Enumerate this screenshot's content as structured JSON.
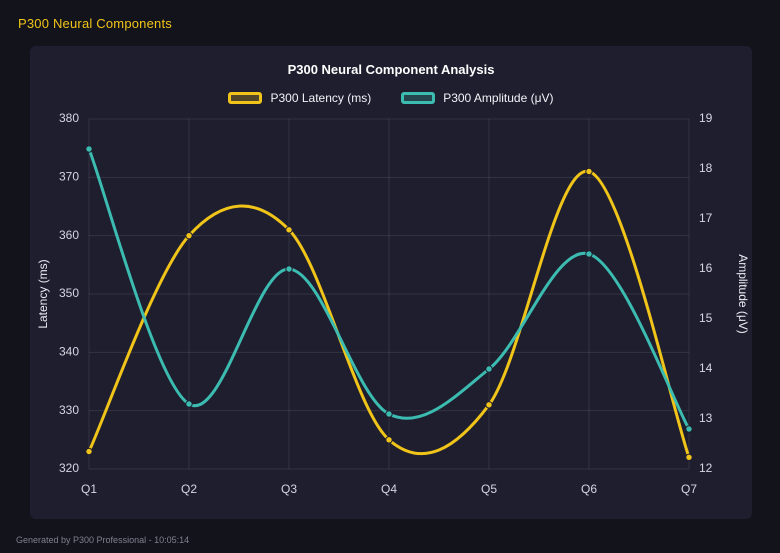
{
  "page": {
    "header_title": "P300 Neural Components",
    "footer_text": "Generated by P300 Professional - 10:05:14"
  },
  "chart_data": {
    "type": "line",
    "title": "P300 Neural Component Analysis",
    "categories": [
      "Q1",
      "Q2",
      "Q3",
      "Q4",
      "Q5",
      "Q6",
      "Q7"
    ],
    "series": [
      {
        "name": "P300 Latency (ms)",
        "axis": "left",
        "color": "#f0c419",
        "values": [
          323,
          360,
          361,
          325,
          331,
          371,
          322
        ]
      },
      {
        "name": "P300 Amplitude (μV)",
        "axis": "right",
        "color": "#3cbcb0",
        "values": [
          18.4,
          13.3,
          16.0,
          13.1,
          14.0,
          16.3,
          12.8
        ]
      }
    ],
    "left_axis": {
      "label": "Latency (ms)",
      "min": 320,
      "max": 380,
      "step": 10
    },
    "right_axis": {
      "label": "Amplitude (μV)",
      "min": 12,
      "max": 19,
      "step": 1
    },
    "grid": true,
    "legend_position": "top",
    "line_style": "smooth"
  }
}
